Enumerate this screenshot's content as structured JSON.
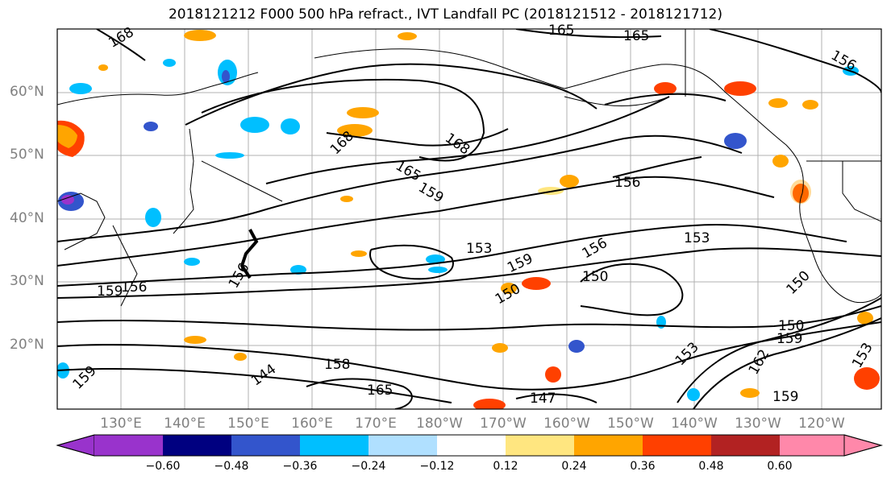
{
  "title": "2018121212 F000 500 hPa refract., IVT Landfall PC (2018121512 - 2018121712)",
  "lat_labels": [
    "60°N",
    "50°N",
    "40°N",
    "30°N",
    "20°N"
  ],
  "lon_labels": [
    "130°E",
    "140°E",
    "150°E",
    "160°E",
    "170°E",
    "180°W",
    "170°W",
    "160°W",
    "150°W",
    "140°W",
    "130°W",
    "120°W"
  ],
  "colorbar": {
    "ticks": [
      "−0.60",
      "−0.48",
      "−0.36",
      "−0.24",
      "−0.12",
      "0.12",
      "0.24",
      "0.36",
      "0.48",
      "0.60"
    ],
    "colors": [
      "#9933cc",
      "#000080",
      "#3355cc",
      "#00bfff",
      "#b0e0ff",
      "#ffffff",
      "#ffe680",
      "#ffa500",
      "#ff4000",
      "#b22222",
      "#ff88aa"
    ]
  },
  "contour_labels": [
    "168",
    "165",
    "165",
    "156",
    "168",
    "168",
    "165",
    "159",
    "156",
    "153",
    "153",
    "159",
    "156",
    "150",
    "150",
    "150",
    "156",
    "159",
    "144",
    "158",
    "165",
    "147",
    "153",
    "162",
    "159",
    "150",
    "159",
    "153",
    "156",
    "159"
  ],
  "map_layers": [
    "coastlines",
    "country borders",
    "refractivity contours",
    "IVT landfall PC shading",
    "lat/lon grid"
  ]
}
